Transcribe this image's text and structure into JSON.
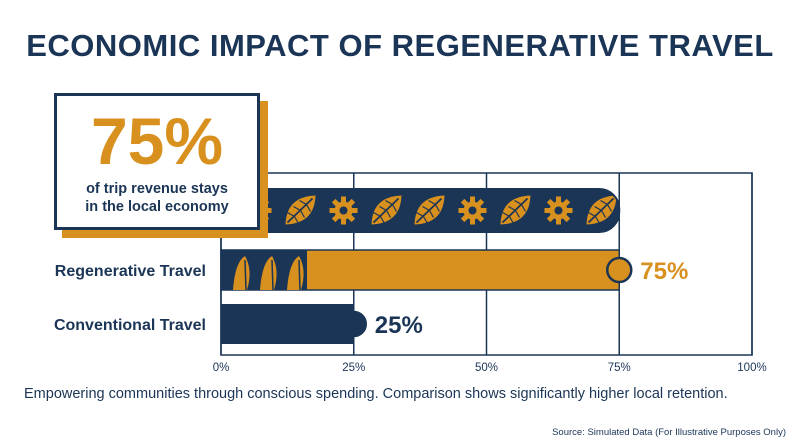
{
  "title": "ECONOMIC IMPACT OF REGENERATIVE TRAVEL",
  "callout": {
    "value": "75%",
    "text_line1": "of trip revenue stays",
    "text_line2": "in the local economy"
  },
  "caption": "Empowering communities through conscious spending. Comparison shows significantly higher local retention.",
  "source": "Source: Simulated Data (For Illustrative Purposes Only)",
  "colors": {
    "navy": "#1b3556",
    "gold": "#d8901f",
    "white": "#ffffff"
  },
  "chart_data": {
    "type": "bar",
    "orientation": "horizontal",
    "categories": [
      "Regenerative Travel",
      "Conventional Travel"
    ],
    "values": [
      75,
      25
    ],
    "value_labels": [
      "75%",
      "25%"
    ],
    "xlim": [
      0,
      100
    ],
    "xticks": [
      0,
      25,
      50,
      75,
      100
    ],
    "xtick_labels": [
      "0%",
      "25%",
      "50%",
      "75%",
      "100%"
    ],
    "grid": true,
    "decorative_pattern_bar_value": 75
  }
}
